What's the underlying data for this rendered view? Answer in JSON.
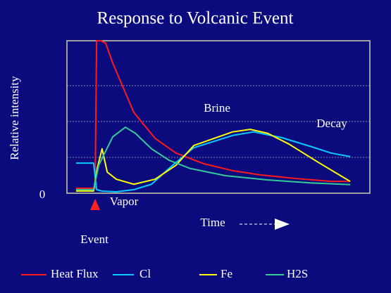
{
  "chart_data": {
    "type": "line",
    "title": "Response to Volcanic Event",
    "xlabel": "Time",
    "ylabel": "Relative intensity",
    "xlim": [
      0,
      100
    ],
    "ylim": [
      0,
      4.25
    ],
    "yticks": [
      0
    ],
    "ygrid": [
      1,
      2,
      3
    ],
    "annotations": [
      "Brine",
      "Decay",
      "Vapor",
      "Event"
    ],
    "series": [
      {
        "name": "Heat Flux",
        "color": "#ff1a1a",
        "x": [
          3.0,
          9.3,
          9.8,
          11.2,
          12.8,
          15.1,
          18.6,
          22.1,
          29.1,
          36.0,
          45.3,
          54.7,
          64.0,
          75.6,
          87.2,
          93.5
        ],
        "values": [
          0.14,
          0.14,
          4.25,
          4.25,
          4.18,
          3.63,
          2.94,
          2.25,
          1.53,
          1.12,
          0.82,
          0.63,
          0.51,
          0.41,
          0.33,
          0.33
        ]
      },
      {
        "name": "Cl",
        "color": "#00ccff",
        "x": [
          3.0,
          8.8,
          9.8,
          11.6,
          16.3,
          22.1,
          27.9,
          34.9,
          41.9,
          54.7,
          61.6,
          70.9,
          80.2,
          87.2,
          93.5
        ],
        "values": [
          0.84,
          0.84,
          0.1,
          0.06,
          0.04,
          0.1,
          0.25,
          0.78,
          1.27,
          1.61,
          1.71,
          1.55,
          1.31,
          1.12,
          1.02
        ]
      },
      {
        "name": "Fe",
        "color": "#ffff00",
        "x": [
          3.0,
          8.8,
          10.0,
          11.6,
          13.3,
          16.3,
          22.1,
          29.1,
          36.0,
          41.9,
          54.7,
          60.5,
          66.3,
          73.3,
          82.6,
          93.5
        ],
        "values": [
          0.06,
          0.06,
          0.69,
          1.24,
          0.59,
          0.39,
          0.25,
          0.39,
          0.78,
          1.33,
          1.71,
          1.78,
          1.67,
          1.37,
          0.88,
          0.33
        ]
      },
      {
        "name": "H2S",
        "color": "#33cc99",
        "x": [
          3.0,
          8.8,
          10.5,
          15.1,
          19.3,
          22.6,
          27.9,
          33.7,
          40.7,
          52.3,
          66.3,
          80.2,
          93.5
        ],
        "values": [
          0.1,
          0.1,
          0.78,
          1.57,
          1.84,
          1.67,
          1.24,
          0.92,
          0.69,
          0.49,
          0.37,
          0.29,
          0.24
        ]
      }
    ]
  }
}
